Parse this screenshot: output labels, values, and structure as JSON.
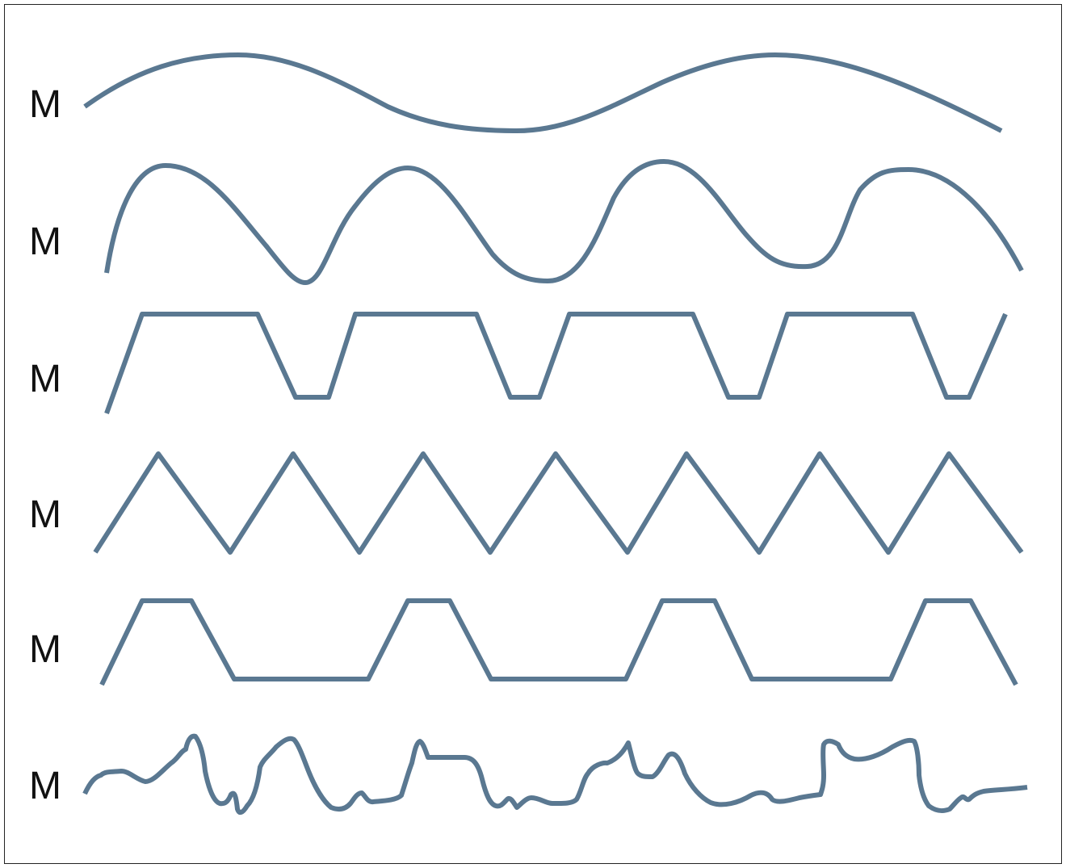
{
  "diagram": {
    "stroke_color": "#5a7891",
    "rows": [
      {
        "label": "M",
        "shape": "sine-wave-slow"
      },
      {
        "label": "M",
        "shape": "sine-wave-fast"
      },
      {
        "label": "M",
        "shape": "trapezoid-wave-wide-top"
      },
      {
        "label": "M",
        "shape": "triangle-wave"
      },
      {
        "label": "M",
        "shape": "trapezoid-wave-wide-bottom"
      },
      {
        "label": "M",
        "shape": "irregular-wave"
      }
    ]
  }
}
